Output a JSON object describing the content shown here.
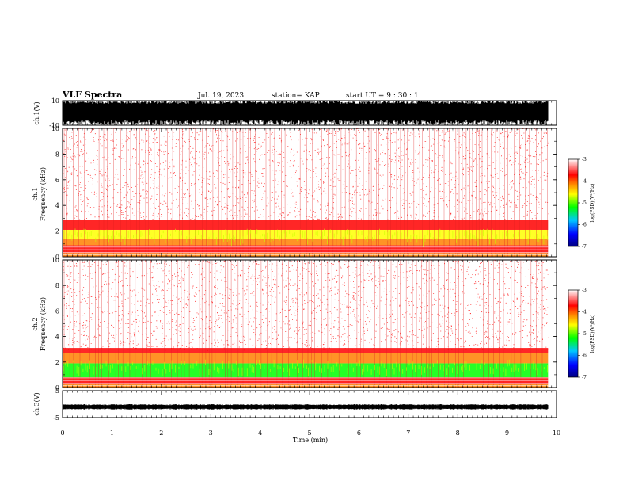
{
  "header": {
    "title": "VLF Spectra",
    "date": "Jul. 19, 2023",
    "station": "station= KAP",
    "start": "start  UT =   9 : 30 : 1"
  },
  "chart_data": [
    {
      "type": "line",
      "name": "ch1-waveform",
      "ylabel": "ch.1(V)",
      "ylim": [
        -10,
        10
      ],
      "yticks": [
        "10",
        "-10"
      ],
      "xlim": [
        0,
        10
      ],
      "note_data_end_min": 9.83
    },
    {
      "type": "heatmap",
      "name": "ch1-spectrogram",
      "ylabel": "ch.1\nFrequency  (kHz)",
      "ylabel_lines": [
        "ch.1",
        "Frequency  (kHz)"
      ],
      "ylim": [
        0,
        10
      ],
      "yticks": [
        "0",
        "2",
        "4",
        "6",
        "8",
        "10"
      ],
      "xlim": [
        0,
        10
      ],
      "band_levels": [
        {
          "freq_khz": [
            0.0,
            0.3
          ],
          "level": -4.0
        },
        {
          "freq_khz": [
            0.3,
            0.9
          ],
          "level": -3.6
        },
        {
          "freq_khz": [
            0.9,
            1.4
          ],
          "level": -4.3
        },
        {
          "freq_khz": [
            1.4,
            2.1
          ],
          "level": -4.6
        },
        {
          "freq_khz": [
            2.1,
            2.9
          ],
          "level": -3.8
        },
        {
          "freq_khz": [
            2.9,
            10.0
          ],
          "level": -3.2
        }
      ],
      "colorbar": {
        "label": "log(PSD)(V²/Hz)",
        "ticks": [
          "-3",
          "-4",
          "-5",
          "-6",
          "-7"
        ],
        "range": [
          -7,
          -3
        ]
      }
    },
    {
      "type": "heatmap",
      "name": "ch2-spectrogram",
      "ylabel": "ch.2\nFrequency  (kHz)",
      "ylabel_lines": [
        "ch.2",
        "Frequency  (kHz)"
      ],
      "ylim": [
        0,
        10
      ],
      "yticks": [
        "0",
        "2",
        "4",
        "6",
        "8",
        "10"
      ],
      "xlim": [
        0,
        10
      ],
      "band_levels": [
        {
          "freq_khz": [
            0.0,
            0.3
          ],
          "level": -4.0
        },
        {
          "freq_khz": [
            0.3,
            0.8
          ],
          "level": -3.7
        },
        {
          "freq_khz": [
            0.8,
            1.9
          ],
          "level": -4.9
        },
        {
          "freq_khz": [
            1.9,
            2.7
          ],
          "level": -4.3
        },
        {
          "freq_khz": [
            2.7,
            3.1
          ],
          "level": -3.9
        },
        {
          "freq_khz": [
            3.1,
            10.0
          ],
          "level": -3.2
        }
      ],
      "colorbar": {
        "label": "log(PSD)(V²/Hz)",
        "ticks": [
          "-3",
          "-4",
          "-5",
          "-6",
          "-7"
        ],
        "range": [
          -7,
          -3
        ]
      }
    },
    {
      "type": "line",
      "name": "ch3-waveform",
      "ylabel": "ch.3(V)",
      "ylim": [
        -5,
        5
      ],
      "yticks": [
        "5",
        "-5"
      ],
      "xlim": [
        0,
        10
      ],
      "band_center_v": -1.0
    }
  ],
  "xaxis": {
    "label": "Time  (min)",
    "ticks": [
      "0",
      "1",
      "2",
      "3",
      "4",
      "5",
      "6",
      "7",
      "8",
      "9",
      "10"
    ]
  },
  "colors": {
    "scale": [
      "#000080",
      "#0000ff",
      "#00c8ff",
      "#00ff00",
      "#ffff00",
      "#ff8000",
      "#ff0000",
      "#ffffff"
    ]
  }
}
